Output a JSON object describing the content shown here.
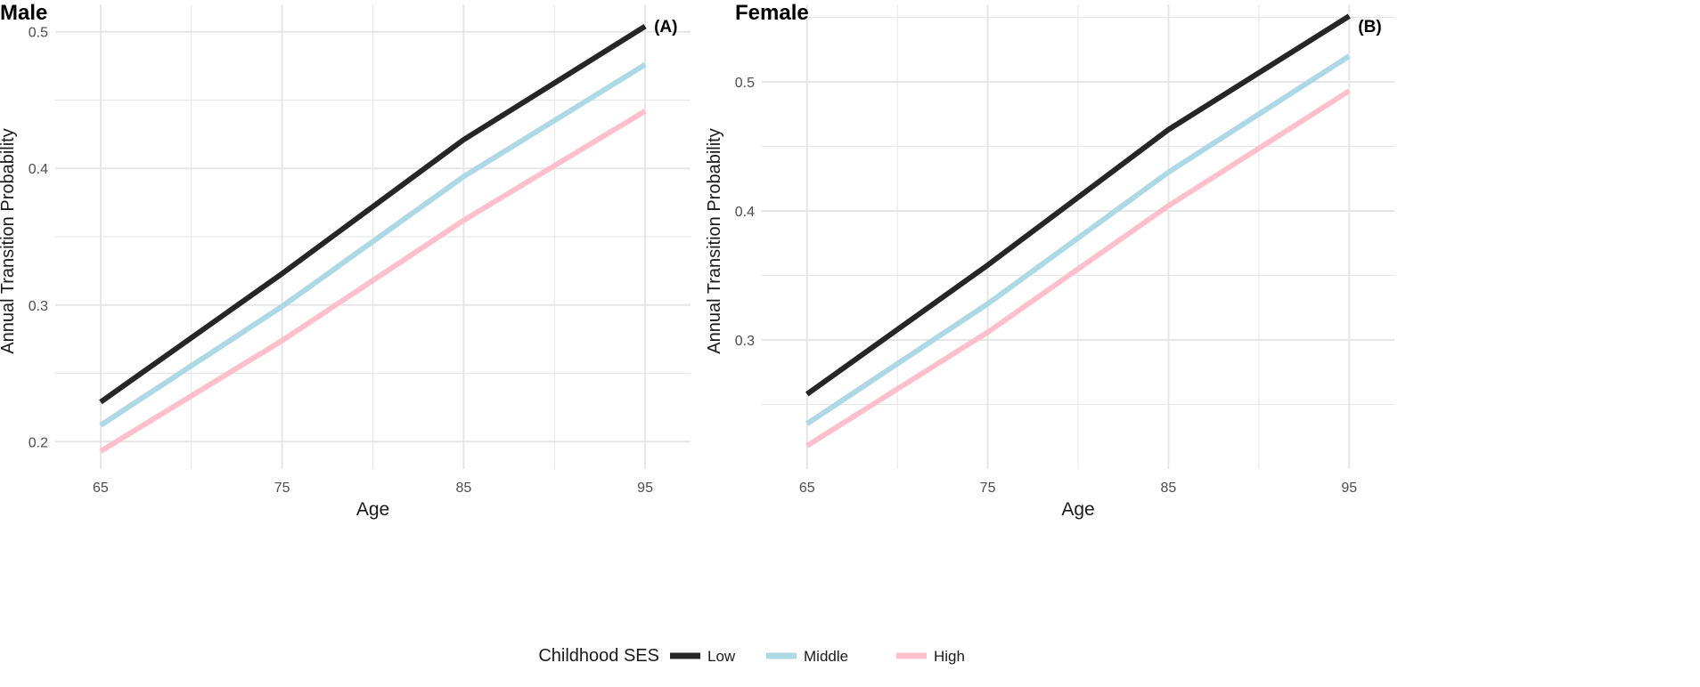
{
  "colors": {
    "low": "#262626",
    "middle": "#add8e6",
    "high": "#ffc0cb",
    "grid": "#e6e6e6",
    "text": "#4d4d4d"
  },
  "legend": {
    "title": "Childhood SES",
    "items": [
      {
        "label": "Low",
        "series": "low"
      },
      {
        "label": "Middle",
        "series": "middle"
      },
      {
        "label": "High",
        "series": "high"
      }
    ]
  },
  "chart_data": [
    {
      "type": "line",
      "title": "Male",
      "panel_tag": "(A)",
      "xlabel": "Age",
      "ylabel": "Annual Transition Probability",
      "x": [
        65,
        75,
        85,
        95
      ],
      "xticks": [
        "65",
        "75",
        "85",
        "95"
      ],
      "xlim": [
        62.5,
        97.5
      ],
      "yticks": [
        "0.2",
        "0.3",
        "0.4",
        "0.5"
      ],
      "ylim": [
        0.18,
        0.52
      ],
      "series": [
        {
          "name": "Low",
          "key": "low",
          "values": [
            0.229,
            0.323,
            0.421,
            0.504
          ]
        },
        {
          "name": "Middle",
          "key": "middle",
          "values": [
            0.212,
            0.299,
            0.394,
            0.476
          ]
        },
        {
          "name": "High",
          "key": "high",
          "values": [
            0.193,
            0.274,
            0.362,
            0.442
          ]
        }
      ]
    },
    {
      "type": "line",
      "title": "Female",
      "panel_tag": "(B)",
      "xlabel": "Age",
      "ylabel": "Annual Transition Probability",
      "x": [
        65,
        75,
        85,
        95
      ],
      "xticks": [
        "65",
        "75",
        "85",
        "95"
      ],
      "xlim": [
        62.5,
        97.5
      ],
      "yticks": [
        "0.3",
        "0.4",
        "0.5"
      ],
      "ylim": [
        0.2,
        0.56
      ],
      "series": [
        {
          "name": "Low",
          "key": "low",
          "values": [
            0.258,
            0.358,
            0.463,
            0.551
          ]
        },
        {
          "name": "Middle",
          "key": "middle",
          "values": [
            0.235,
            0.328,
            0.43,
            0.52
          ]
        },
        {
          "name": "High",
          "key": "high",
          "values": [
            0.218,
            0.306,
            0.404,
            0.493
          ]
        }
      ]
    }
  ]
}
